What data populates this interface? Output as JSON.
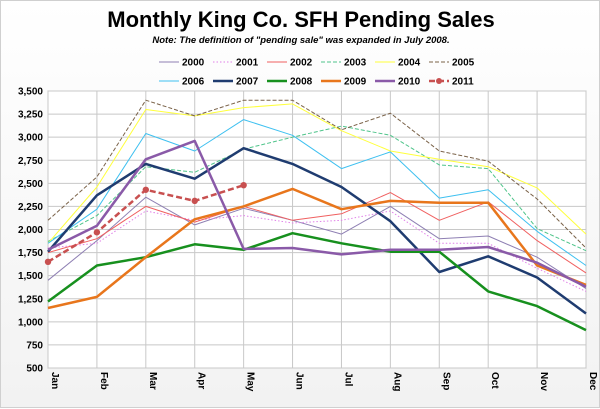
{
  "chart_data": {
    "type": "line",
    "title": "Monthly King Co. SFH Pending Sales",
    "subtitle": "Note: The definition of \"pending sale\" was expanded in July 2008.",
    "xlabel": "",
    "ylabel": "",
    "categories": [
      "Jan",
      "Feb",
      "Mar",
      "Apr",
      "May",
      "Jun",
      "Jul",
      "Aug",
      "Sep",
      "Oct",
      "Nov",
      "Dec"
    ],
    "ylim": [
      500,
      3500
    ],
    "yticks": [
      500,
      750,
      1000,
      1250,
      1500,
      1750,
      2000,
      2250,
      2500,
      2750,
      3000,
      3250,
      3500
    ],
    "ytick_labels": [
      "500",
      "750",
      "1,000",
      "1,250",
      "1,500",
      "1,750",
      "2,000",
      "2,250",
      "2,500",
      "2,750",
      "3,000",
      "3,250",
      "3,500"
    ],
    "grid": true,
    "legend_position": "top",
    "series": [
      {
        "name": "2000",
        "color": "#8e7fb3",
        "style": "solid",
        "width": 1,
        "values": [
          1450,
          1880,
          2350,
          2050,
          2230,
          2100,
          1950,
          2250,
          1900,
          1930,
          1700,
          1360
        ]
      },
      {
        "name": "2001",
        "color": "#e080e8",
        "style": "dotted",
        "width": 1,
        "values": [
          1800,
          1850,
          2200,
          2100,
          2150,
          2070,
          2100,
          2200,
          1850,
          1850,
          1580,
          1330
        ]
      },
      {
        "name": "2002",
        "color": "#f06060",
        "style": "solid",
        "width": 1,
        "values": [
          1750,
          1900,
          2250,
          2080,
          2250,
          2100,
          2170,
          2400,
          2100,
          2300,
          1880,
          1530
        ]
      },
      {
        "name": "2003",
        "color": "#4ec48a",
        "style": "dashed",
        "width": 1,
        "values": [
          1870,
          2150,
          2680,
          2620,
          2870,
          3000,
          3120,
          3020,
          2700,
          2660,
          2010,
          1770
        ]
      },
      {
        "name": "2004",
        "color": "#ffff3c",
        "style": "solid",
        "width": 1,
        "values": [
          1850,
          2460,
          3300,
          3230,
          3320,
          3360,
          3070,
          2850,
          2760,
          2680,
          2450,
          1950
        ]
      },
      {
        "name": "2005",
        "color": "#7a6248",
        "style": "dashed",
        "width": 1,
        "values": [
          2100,
          2570,
          3400,
          3230,
          3400,
          3400,
          3080,
          3260,
          2850,
          2740,
          2330,
          1800
        ]
      },
      {
        "name": "2006",
        "color": "#3ec0f0",
        "style": "solid",
        "width": 1,
        "values": [
          1850,
          2220,
          3040,
          2850,
          3190,
          3020,
          2660,
          2840,
          2340,
          2430,
          1980,
          1610
        ]
      },
      {
        "name": "2007",
        "color": "#1f3c70",
        "style": "solid",
        "width": 2.5,
        "values": [
          1760,
          2370,
          2710,
          2550,
          2880,
          2710,
          2460,
          2090,
          1540,
          1710,
          1480,
          1090
        ]
      },
      {
        "name": "2008",
        "color": "#17901e",
        "style": "solid",
        "width": 2.5,
        "values": [
          1220,
          1610,
          1700,
          1840,
          1780,
          1960,
          1850,
          1760,
          1760,
          1330,
          1170,
          910
        ]
      },
      {
        "name": "2009",
        "color": "#e8761c",
        "style": "solid",
        "width": 2.5,
        "values": [
          1150,
          1270,
          1700,
          2110,
          2250,
          2440,
          2220,
          2310,
          2290,
          2290,
          1610,
          1400
        ]
      },
      {
        "name": "2010",
        "color": "#8a5aa8",
        "style": "solid",
        "width": 2.5,
        "values": [
          1780,
          2040,
          2760,
          2960,
          1790,
          1800,
          1730,
          1780,
          1780,
          1810,
          1640,
          1380
        ]
      },
      {
        "name": "2011",
        "color": "#c85050",
        "style": "dashed",
        "width": 2.5,
        "markers": true,
        "values": [
          1650,
          1970,
          2430,
          2310,
          2480,
          null,
          null,
          null,
          null,
          null,
          null,
          null
        ]
      }
    ]
  }
}
